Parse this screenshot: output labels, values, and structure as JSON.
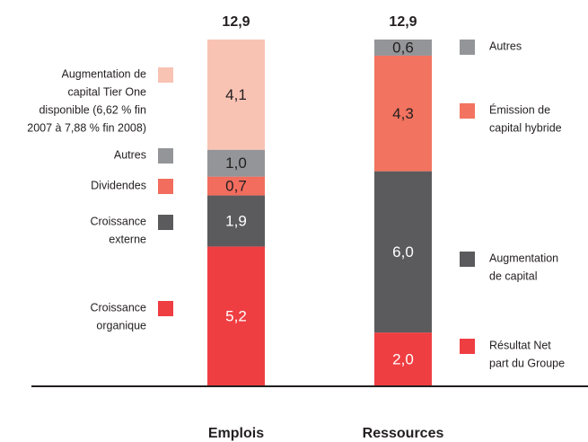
{
  "chart_data": {
    "type": "stacked_bar",
    "categories": [
      "Emplois",
      "Ressources"
    ],
    "stacks": [
      {
        "total": 12.9,
        "total_label": "12,9",
        "segments": [
          {
            "label_lines": [
              "Croissance",
              "organique"
            ],
            "color": "#ef3e42",
            "value": 5.2,
            "value_label": "5,2"
          },
          {
            "label_lines": [
              "Croissance",
              "externe"
            ],
            "color": "#5b5b5d",
            "value": 1.9,
            "value_label": "1,9"
          },
          {
            "label_lines": [
              "Dividendes"
            ],
            "color": "#f26d5e",
            "value": 0.7,
            "value_label": "0,7"
          },
          {
            "label_lines": [
              "Autres"
            ],
            "color": "#939598",
            "value": 1.0,
            "value_label": "1,0"
          },
          {
            "label_lines": [
              "Augmentation de",
              "capital Tier One",
              "disponible (6,62 % fin",
              "2007 à 7,88 % fin 2008)"
            ],
            "color": "#f9c3b4",
            "value": 4.1,
            "value_label": "4,1"
          }
        ]
      },
      {
        "total": 12.9,
        "total_label": "12,9",
        "segments": [
          {
            "label_lines": [
              "Résultat Net",
              "part du Groupe"
            ],
            "color": "#ef3e42",
            "value": 2.0,
            "value_label": "2,0"
          },
          {
            "label_lines": [
              "Augmentation",
              "de capital"
            ],
            "color": "#5b5b5d",
            "value": 6.0,
            "value_label": "6,0"
          },
          {
            "label_lines": [
              "Émission de",
              "capital hybride"
            ],
            "color": "#f2735f",
            "value": 4.3,
            "value_label": "4,3"
          },
          {
            "label_lines": [
              "Autres"
            ],
            "color": "#939598",
            "value": 0.6,
            "value_label": "0,6"
          }
        ]
      }
    ]
  }
}
